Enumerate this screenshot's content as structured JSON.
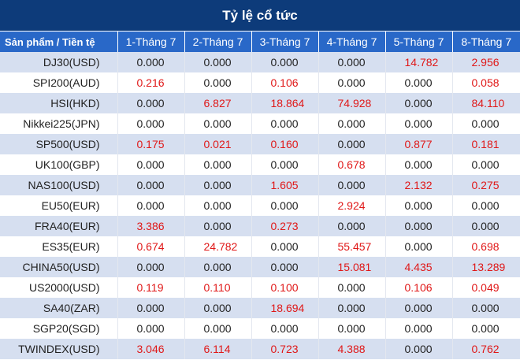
{
  "title": "Tỷ lệ cổ tức",
  "columns": {
    "product": "Sản phẩm / Tiền tệ",
    "days": [
      "1-Tháng 7",
      "2-Tháng 7",
      "3-Tháng 7",
      "4-Tháng 7",
      "5-Tháng 7",
      "8-Tháng 7"
    ]
  },
  "colors": {
    "title_bg": "#0d3b7a",
    "header_bg": "#2968c8",
    "row_shaded": "#d6dff0",
    "positive_value": "#e01818",
    "zero_value": "#222222"
  },
  "rows": [
    {
      "product": "DJ30(USD)",
      "values": [
        "0.000",
        "0.000",
        "0.000",
        "0.000",
        "14.782",
        "2.956"
      ]
    },
    {
      "product": "SPI200(AUD)",
      "values": [
        "0.216",
        "0.000",
        "0.106",
        "0.000",
        "0.000",
        "0.058"
      ]
    },
    {
      "product": "HSI(HKD)",
      "values": [
        "0.000",
        "6.827",
        "18.864",
        "74.928",
        "0.000",
        "84.110"
      ]
    },
    {
      "product": "Nikkei225(JPN)",
      "values": [
        "0.000",
        "0.000",
        "0.000",
        "0.000",
        "0.000",
        "0.000"
      ]
    },
    {
      "product": "SP500(USD)",
      "values": [
        "0.175",
        "0.021",
        "0.160",
        "0.000",
        "0.877",
        "0.181"
      ]
    },
    {
      "product": "UK100(GBP)",
      "values": [
        "0.000",
        "0.000",
        "0.000",
        "0.678",
        "0.000",
        "0.000"
      ]
    },
    {
      "product": "NAS100(USD)",
      "values": [
        "0.000",
        "0.000",
        "1.605",
        "0.000",
        "2.132",
        "0.275"
      ]
    },
    {
      "product": "EU50(EUR)",
      "values": [
        "0.000",
        "0.000",
        "0.000",
        "2.924",
        "0.000",
        "0.000"
      ]
    },
    {
      "product": "FRA40(EUR)",
      "values": [
        "3.386",
        "0.000",
        "0.273",
        "0.000",
        "0.000",
        "0.000"
      ]
    },
    {
      "product": "ES35(EUR)",
      "values": [
        "0.674",
        "24.782",
        "0.000",
        "55.457",
        "0.000",
        "0.698"
      ]
    },
    {
      "product": "CHINA50(USD)",
      "values": [
        "0.000",
        "0.000",
        "0.000",
        "15.081",
        "4.435",
        "13.289"
      ]
    },
    {
      "product": "US2000(USD)",
      "values": [
        "0.119",
        "0.110",
        "0.100",
        "0.000",
        "0.106",
        "0.049"
      ]
    },
    {
      "product": "SA40(ZAR)",
      "values": [
        "0.000",
        "0.000",
        "18.694",
        "0.000",
        "0.000",
        "0.000"
      ]
    },
    {
      "product": "SGP20(SGD)",
      "values": [
        "0.000",
        "0.000",
        "0.000",
        "0.000",
        "0.000",
        "0.000"
      ]
    },
    {
      "product": "TWINDEX(USD)",
      "values": [
        "3.046",
        "6.114",
        "0.723",
        "4.388",
        "0.000",
        "0.762"
      ]
    }
  ]
}
